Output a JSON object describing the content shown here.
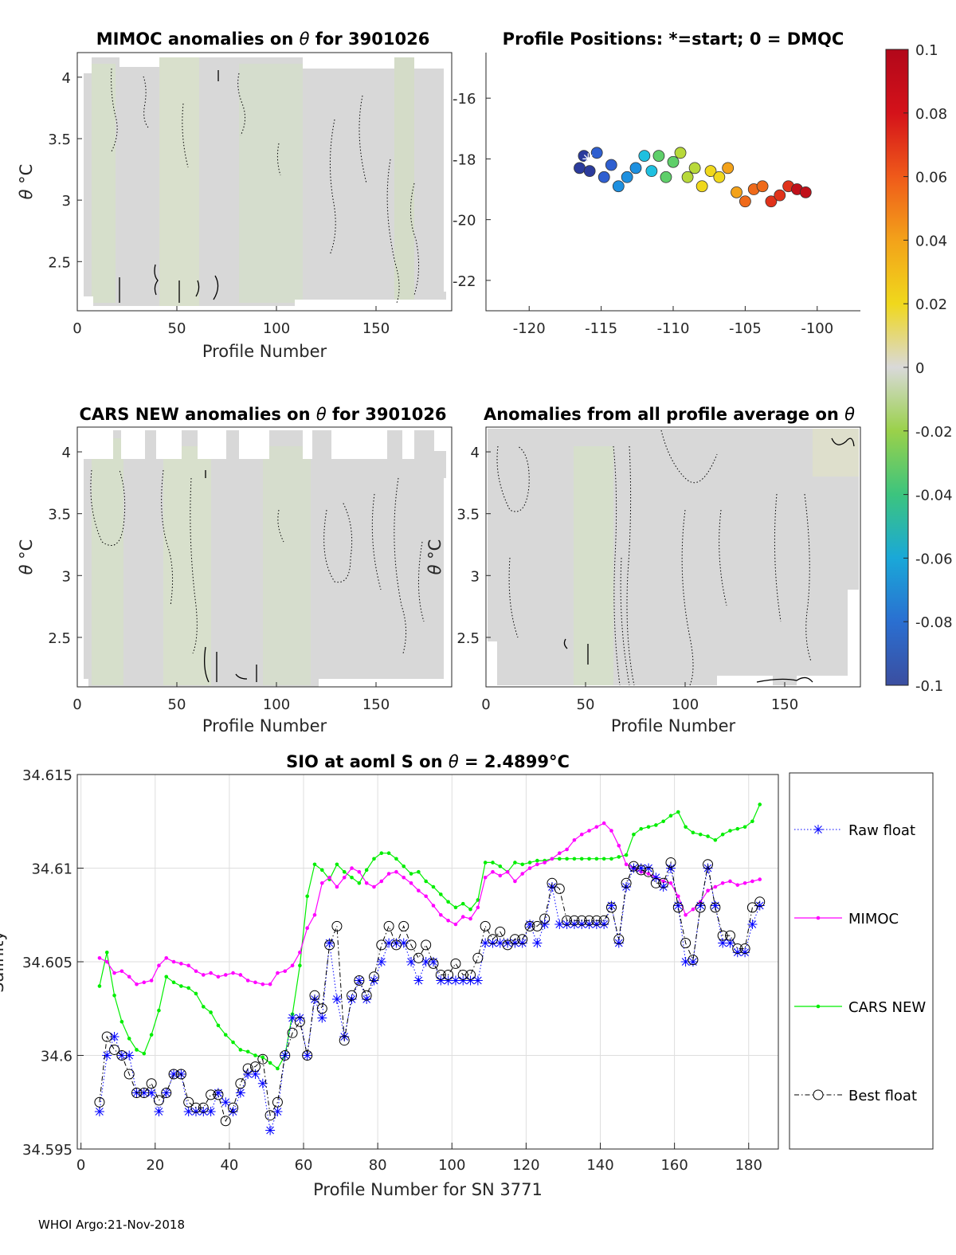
{
  "footer": "WHOI Argo:21-Nov-2018",
  "colorbar": {
    "min": -0.1,
    "max": 0.1,
    "ticks": [
      0.1,
      0.08,
      0.06,
      0.04,
      0.02,
      0,
      -0.02,
      -0.04,
      -0.06,
      -0.08,
      -0.1
    ],
    "tick_labels": [
      "0.1",
      "0.08",
      "0.06",
      "0.04",
      "0.02",
      "0",
      "-0.02",
      "-0.04",
      "-0.06",
      "-0.08",
      "-0.1"
    ],
    "colors": [
      "#3b4ea0",
      "#2a6fd1",
      "#1aa8d8",
      "#3cc47e",
      "#9ad14a",
      "#d9d9d9",
      "#f0d81c",
      "#f3a21a",
      "#ef5a1a",
      "#d4121a",
      "#b2071a"
    ]
  },
  "chart_data": [
    {
      "type": "heatmap",
      "title_prefix": "MIMOC anomalies on ",
      "title_symbol": "θ",
      "title_suffix": "  for 3901026",
      "xlabel": "Profile Number",
      "ylabel_symbol": "θ",
      "ylabel_unit": "°C",
      "xlim": [
        0,
        188
      ],
      "ylim": [
        2.1,
        4.2
      ],
      "xticks": [
        0,
        50,
        100,
        150
      ],
      "yticks": [
        2.5,
        3,
        3.5,
        4
      ],
      "ytick_labels": [
        "2.5",
        "3",
        "3.5",
        "4"
      ]
    },
    {
      "type": "scatter",
      "title": "Profile Positions: *=start; 0 = DMQC",
      "xlabel": "",
      "ylabel": "",
      "xlim": [
        -123,
        -97
      ],
      "ylim": [
        -23,
        -14.5
      ],
      "xticks": [
        -120,
        -115,
        -110,
        -105,
        -100
      ],
      "xtick_labels": [
        "-120",
        "-115",
        "-110",
        "-105",
        "-100"
      ],
      "yticks": [
        -16,
        -18,
        -20,
        -22
      ],
      "ytick_labels": [
        "-16",
        "-18",
        "-20",
        "-22"
      ],
      "track_lon": [
        -116.5,
        -116.2,
        -115.8,
        -115.3,
        -114.8,
        -114.3,
        -113.8,
        -113.2,
        -112.6,
        -112.0,
        -111.5,
        -111.0,
        -110.5,
        -110.0,
        -109.5,
        -109.0,
        -108.5,
        -108.0,
        -107.4,
        -106.8,
        -106.2,
        -105.6,
        -105.0,
        -104.4,
        -103.8,
        -103.2,
        -102.6,
        -102.0,
        -101.4,
        -100.8
      ],
      "track_lat": [
        -18.3,
        -17.9,
        -18.4,
        -17.8,
        -18.6,
        -18.2,
        -18.9,
        -18.6,
        -18.3,
        -17.9,
        -18.4,
        -17.9,
        -18.6,
        -18.1,
        -17.8,
        -18.6,
        -18.3,
        -18.9,
        -18.4,
        -18.6,
        -18.3,
        -19.1,
        -19.4,
        -19.0,
        -18.9,
        -19.4,
        -19.2,
        -18.9,
        -19.0,
        -19.1
      ],
      "start_lon": -115.9,
      "start_lat": -18.0
    },
    {
      "type": "heatmap",
      "title_prefix": "CARS NEW anomalies on ",
      "title_symbol": "θ",
      "title_suffix": " for 3901026",
      "xlabel": "Profile Number",
      "ylabel_symbol": "θ",
      "ylabel_unit": "°C",
      "xlim": [
        0,
        188
      ],
      "ylim": [
        2.1,
        4.2
      ],
      "xticks": [
        0,
        50,
        100,
        150
      ],
      "yticks": [
        2.5,
        3,
        3.5,
        4
      ],
      "ytick_labels": [
        "2.5",
        "3",
        "3.5",
        "4"
      ]
    },
    {
      "type": "heatmap",
      "title_prefix": "Anomalies from all profile average on ",
      "title_symbol": "θ",
      "title_suffix": "",
      "xlabel": "Profile Number",
      "ylabel_symbol": "θ",
      "ylabel_unit": "°C",
      "xlim": [
        0,
        188
      ],
      "ylim": [
        2.1,
        4.2
      ],
      "xticks": [
        0,
        50,
        100,
        150
      ],
      "yticks": [
        2.5,
        3,
        3.5,
        4
      ],
      "ytick_labels": [
        "2.5",
        "3",
        "3.5",
        "4"
      ]
    },
    {
      "type": "line",
      "title_prefix": "SIO at aoml S on ",
      "title_symbol": "θ",
      "title_value": " = 2.4899",
      "title_unit": "°C",
      "xlabel": "Profile Number for SN 3771",
      "ylabel": "Salinity",
      "xlim": [
        -1,
        188
      ],
      "ylim": [
        34.595,
        34.615
      ],
      "xticks": [
        0,
        20,
        40,
        60,
        80,
        100,
        120,
        140,
        160,
        180
      ],
      "yticks": [
        34.595,
        34.6,
        34.605,
        34.61,
        34.615
      ],
      "ytick_labels": [
        "34.595",
        "34.6",
        "34.605",
        "34.61",
        "34.615"
      ],
      "x": [
        5,
        7,
        9,
        11,
        13,
        15,
        17,
        19,
        21,
        23,
        25,
        27,
        29,
        31,
        33,
        35,
        37,
        39,
        41,
        43,
        45,
        47,
        49,
        51,
        53,
        55,
        57,
        59,
        61,
        63,
        65,
        67,
        69,
        71,
        73,
        75,
        77,
        79,
        81,
        83,
        85,
        87,
        89,
        91,
        93,
        95,
        97,
        99,
        101,
        103,
        105,
        107,
        109,
        111,
        113,
        115,
        117,
        119,
        121,
        123,
        125,
        127,
        129,
        131,
        133,
        135,
        137,
        139,
        141,
        143,
        145,
        147,
        149,
        151,
        153,
        155,
        157,
        159,
        161,
        163,
        165,
        167,
        169,
        171,
        173,
        175,
        177,
        179,
        181,
        183
      ],
      "series": [
        {
          "name": "Raw float",
          "color": "#0000ff",
          "values": [
            34.597,
            34.6,
            34.601,
            34.6,
            34.6,
            34.598,
            34.598,
            34.598,
            34.597,
            34.598,
            34.599,
            34.599,
            34.597,
            34.597,
            34.597,
            34.597,
            34.598,
            34.5975,
            34.597,
            34.598,
            34.599,
            34.599,
            34.5985,
            34.596,
            34.597,
            34.6,
            34.602,
            34.602,
            34.6,
            34.603,
            34.602,
            34.606,
            34.603,
            34.601,
            34.603,
            34.604,
            34.603,
            34.604,
            34.605,
            34.606,
            34.606,
            34.606,
            34.605,
            34.604,
            34.605,
            34.605,
            34.604,
            34.604,
            34.604,
            34.604,
            34.604,
            34.604,
            34.606,
            34.606,
            34.606,
            34.606,
            34.606,
            34.606,
            34.607,
            34.606,
            34.607,
            34.609,
            34.607,
            34.607,
            34.607,
            34.607,
            34.607,
            34.607,
            34.607,
            34.608,
            34.606,
            34.609,
            34.61,
            34.61,
            34.61,
            34.6095,
            34.609,
            34.61,
            34.608,
            34.605,
            34.605,
            34.608,
            34.61,
            34.608,
            34.606,
            34.606,
            34.6055,
            34.6055,
            34.607,
            34.608
          ]
        },
        {
          "name": "MIMOC",
          "color": "#ff00ff",
          "values": [
            34.6052,
            34.605,
            34.6044,
            34.6045,
            34.6042,
            34.6038,
            34.6039,
            34.604,
            34.6048,
            34.6052,
            34.605,
            34.6049,
            34.6048,
            34.6045,
            34.6043,
            34.6044,
            34.6042,
            34.6043,
            34.6044,
            34.6043,
            34.604,
            34.6039,
            34.6038,
            34.6038,
            34.6044,
            34.6045,
            34.6048,
            34.6055,
            34.6068,
            34.6075,
            34.6092,
            34.6095,
            34.609,
            34.6095,
            34.61,
            34.6098,
            34.6092,
            34.609,
            34.6093,
            34.6097,
            34.6098,
            34.6095,
            34.6092,
            34.6088,
            34.6085,
            34.608,
            34.6075,
            34.6072,
            34.607,
            34.6074,
            34.6073,
            34.6079,
            34.6095,
            34.6098,
            34.6096,
            34.6098,
            34.6093,
            34.6097,
            34.61,
            34.6102,
            34.6103,
            34.6105,
            34.6108,
            34.611,
            34.6115,
            34.6118,
            34.612,
            34.6122,
            34.6124,
            34.612,
            34.6112,
            34.6102,
            34.61,
            34.6098,
            34.6097,
            34.6095,
            34.6093,
            34.6092,
            34.6085,
            34.6075,
            34.6078,
            34.6082,
            34.6088,
            34.609,
            34.6092,
            34.6093,
            34.6091,
            34.6092,
            34.6093,
            34.6094
          ]
        },
        {
          "name": "CARS NEW",
          "color": "#00ee00",
          "values": [
            34.6037,
            34.6055,
            34.6032,
            34.6018,
            34.6009,
            34.6003,
            34.6001,
            34.6011,
            34.6024,
            34.6042,
            34.6039,
            34.6037,
            34.6036,
            34.6033,
            34.6026,
            34.6023,
            34.6016,
            34.6011,
            34.6007,
            34.6003,
            34.6002,
            34.6,
            34.5999,
            34.5996,
            34.5993,
            34.6,
            34.6022,
            34.6048,
            34.6085,
            34.6102,
            34.6099,
            34.6094,
            34.6102,
            34.6098,
            34.6095,
            34.6092,
            34.6099,
            34.6105,
            34.6108,
            34.6108,
            34.6105,
            34.6101,
            34.6097,
            34.6098,
            34.6093,
            34.609,
            34.6086,
            34.6082,
            34.6079,
            34.6081,
            34.6078,
            34.6083,
            34.6103,
            34.6103,
            34.6101,
            34.6098,
            34.6103,
            34.6102,
            34.6103,
            34.6104,
            34.6104,
            34.6105,
            34.6105,
            34.6105,
            34.6105,
            34.6105,
            34.6105,
            34.6105,
            34.6105,
            34.6105,
            34.6106,
            34.6107,
            34.6118,
            34.6121,
            34.6122,
            34.6123,
            34.6125,
            34.6128,
            34.613,
            34.6122,
            34.6119,
            34.6118,
            34.6117,
            34.6115,
            34.6118,
            34.612,
            34.6121,
            34.6122,
            34.6125,
            34.6134
          ]
        },
        {
          "name": "Best float",
          "color": "#000000",
          "values": [
            34.5975,
            34.601,
            34.6003,
            34.6,
            34.599,
            34.598,
            34.598,
            34.5985,
            34.5976,
            34.598,
            34.599,
            34.599,
            34.5975,
            34.5972,
            34.5972,
            34.5979,
            34.5979,
            34.5965,
            34.5972,
            34.5985,
            34.5993,
            34.5994,
            34.5998,
            34.5968,
            34.5975,
            34.6,
            34.6012,
            34.6018,
            34.6,
            34.6032,
            34.6025,
            34.6059,
            34.6069,
            34.6008,
            34.6032,
            34.604,
            34.6032,
            34.6042,
            34.6059,
            34.6069,
            34.6059,
            34.6069,
            34.6059,
            34.6052,
            34.6059,
            34.6049,
            34.6043,
            34.6043,
            34.6049,
            34.6043,
            34.6043,
            34.6052,
            34.6069,
            34.6062,
            34.6066,
            34.6059,
            34.6062,
            34.6062,
            34.6069,
            34.6069,
            34.6073,
            34.6092,
            34.6089,
            34.6072,
            34.6072,
            34.6072,
            34.6072,
            34.6072,
            34.6072,
            34.6079,
            34.6062,
            34.6092,
            34.6101,
            34.6099,
            34.6098,
            34.6092,
            34.6092,
            34.6103,
            34.6079,
            34.606,
            34.6051,
            34.6079,
            34.6102,
            34.6079,
            34.6064,
            34.6064,
            34.6057,
            34.6057,
            34.6079,
            34.6082
          ]
        }
      ],
      "legend_position": "right"
    }
  ]
}
